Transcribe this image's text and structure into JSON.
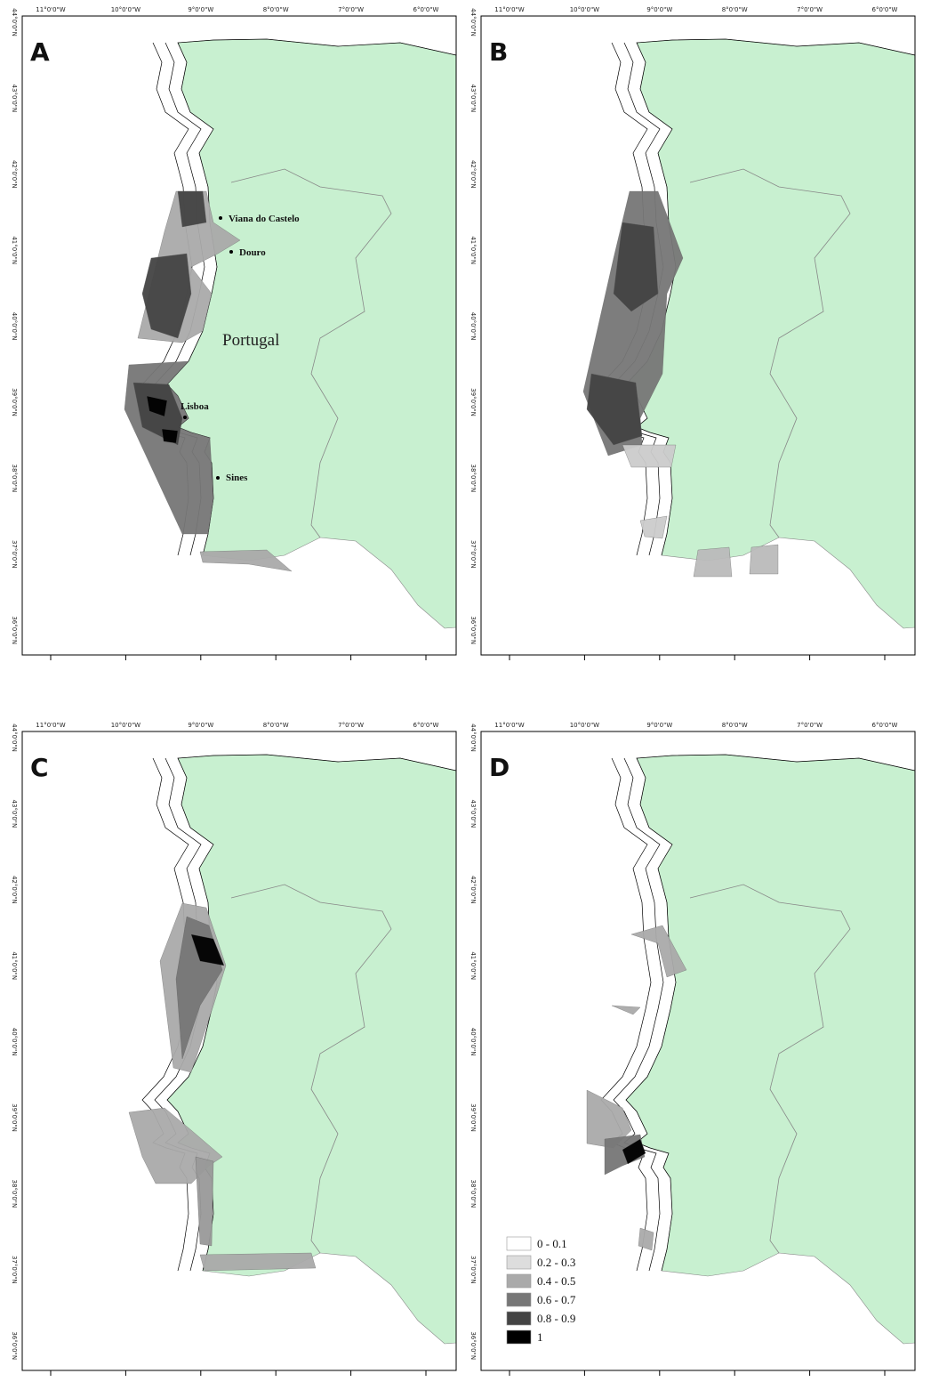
{
  "axes": {
    "lon_labels": [
      "11°0'0\"W",
      "10°0'0\"W",
      "9°0'0\"W",
      "8°0'0\"W",
      "7°0'0\"W",
      "6°0'0\"W"
    ],
    "lat_labels": [
      "44°0'0\"N",
      "43°0'0\"N",
      "42°0'0\"N",
      "41°0'0\"N",
      "40°0'0\"N",
      "39°0'0\"N",
      "38°0'0\"N",
      "37°0'0\"N",
      "36°0'0\"N"
    ]
  },
  "panels": [
    {
      "label": "A"
    },
    {
      "label": "B"
    },
    {
      "label": "C"
    },
    {
      "label": "D"
    }
  ],
  "places": {
    "viana": "Viana do Castelo",
    "douro": "Douro",
    "country": "Portugal",
    "lisboa": "Lisboa",
    "sines": "Sines"
  },
  "legend": [
    {
      "label": "0 - 0.1",
      "color": "#ffffff"
    },
    {
      "label": "0.2 - 0.3",
      "color": "#dddddd"
    },
    {
      "label": "0.4 - 0.5",
      "color": "#aaaaaa"
    },
    {
      "label": "0.6 - 0.7",
      "color": "#777777"
    },
    {
      "label": "0.8 - 0.9",
      "color": "#444444"
    },
    {
      "label": "1",
      "color": "#000000"
    }
  ]
}
